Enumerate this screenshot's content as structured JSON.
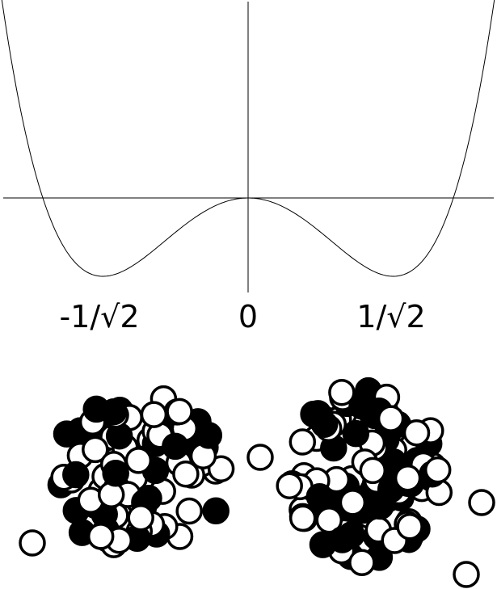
{
  "axis_labels": [
    "-1/√2",
    "0",
    "1/√2"
  ]
}
